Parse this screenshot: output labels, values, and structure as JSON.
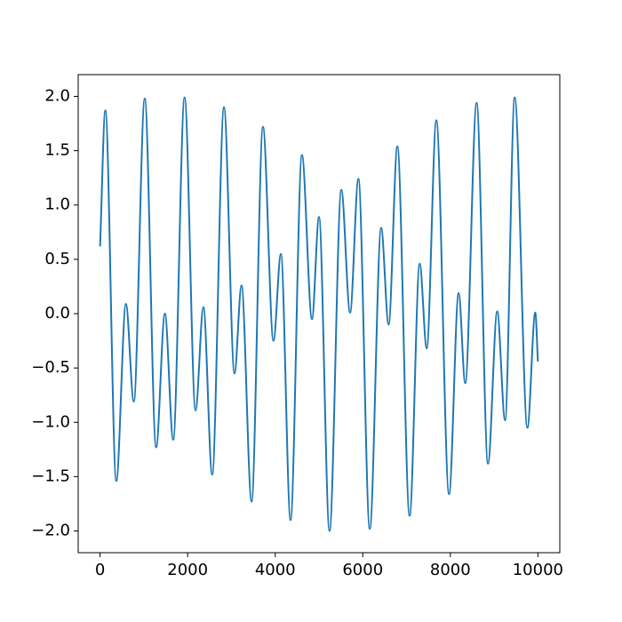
{
  "chart_data": {
    "type": "line",
    "x": [
      0,
      120,
      370,
      590,
      770,
      1020,
      1280,
      1480,
      1670,
      1930,
      2180,
      2360,
      2560,
      2830,
      3070,
      3230,
      3460,
      3720,
      3960,
      4130,
      4350,
      4610,
      4840,
      5000,
      5240,
      5510,
      5710,
      5900,
      6160,
      6420,
      6590,
      6790,
      7070,
      7300,
      7460,
      7680,
      7970,
      8190,
      8340,
      8600,
      8860,
      9070,
      9250,
      9470,
      9760,
      9940,
      10000
    ],
    "series": [
      {
        "color": "#1f77b4",
        "values": [
          0.62,
          1.87,
          -1.54,
          0.09,
          -0.81,
          1.98,
          -1.23,
          0.0,
          -1.16,
          1.99,
          -0.89,
          0.06,
          -1.48,
          1.9,
          -0.55,
          0.26,
          -1.73,
          1.72,
          -0.25,
          0.55,
          -1.9,
          1.46,
          -0.05,
          0.89,
          -2.0,
          1.14,
          0.01,
          1.24,
          -1.98,
          0.79,
          -0.1,
          1.54,
          -1.86,
          0.46,
          -0.32,
          1.78,
          -1.66,
          0.19,
          -0.64,
          1.94,
          -1.38,
          0.02,
          -0.98,
          1.99,
          -1.05,
          0.01,
          -0.44
        ]
      }
    ],
    "xlim": [
      -500,
      10500
    ],
    "ylim": [
      -2.2,
      2.2
    ],
    "xticks": [
      0,
      2000,
      4000,
      6000,
      8000,
      10000
    ],
    "yticks": [
      {
        "value": -2.0,
        "label": "−2.0"
      },
      {
        "value": -1.5,
        "label": "−1.5"
      },
      {
        "value": -1.0,
        "label": "−1.0"
      },
      {
        "value": -0.5,
        "label": "−0.5"
      },
      {
        "value": 0.0,
        "label": "0.0"
      },
      {
        "value": 0.5,
        "label": "0.5"
      },
      {
        "value": 1.0,
        "label": "1.0"
      },
      {
        "value": 1.5,
        "label": "1.5"
      },
      {
        "value": 2.0,
        "label": "2.0"
      }
    ]
  }
}
